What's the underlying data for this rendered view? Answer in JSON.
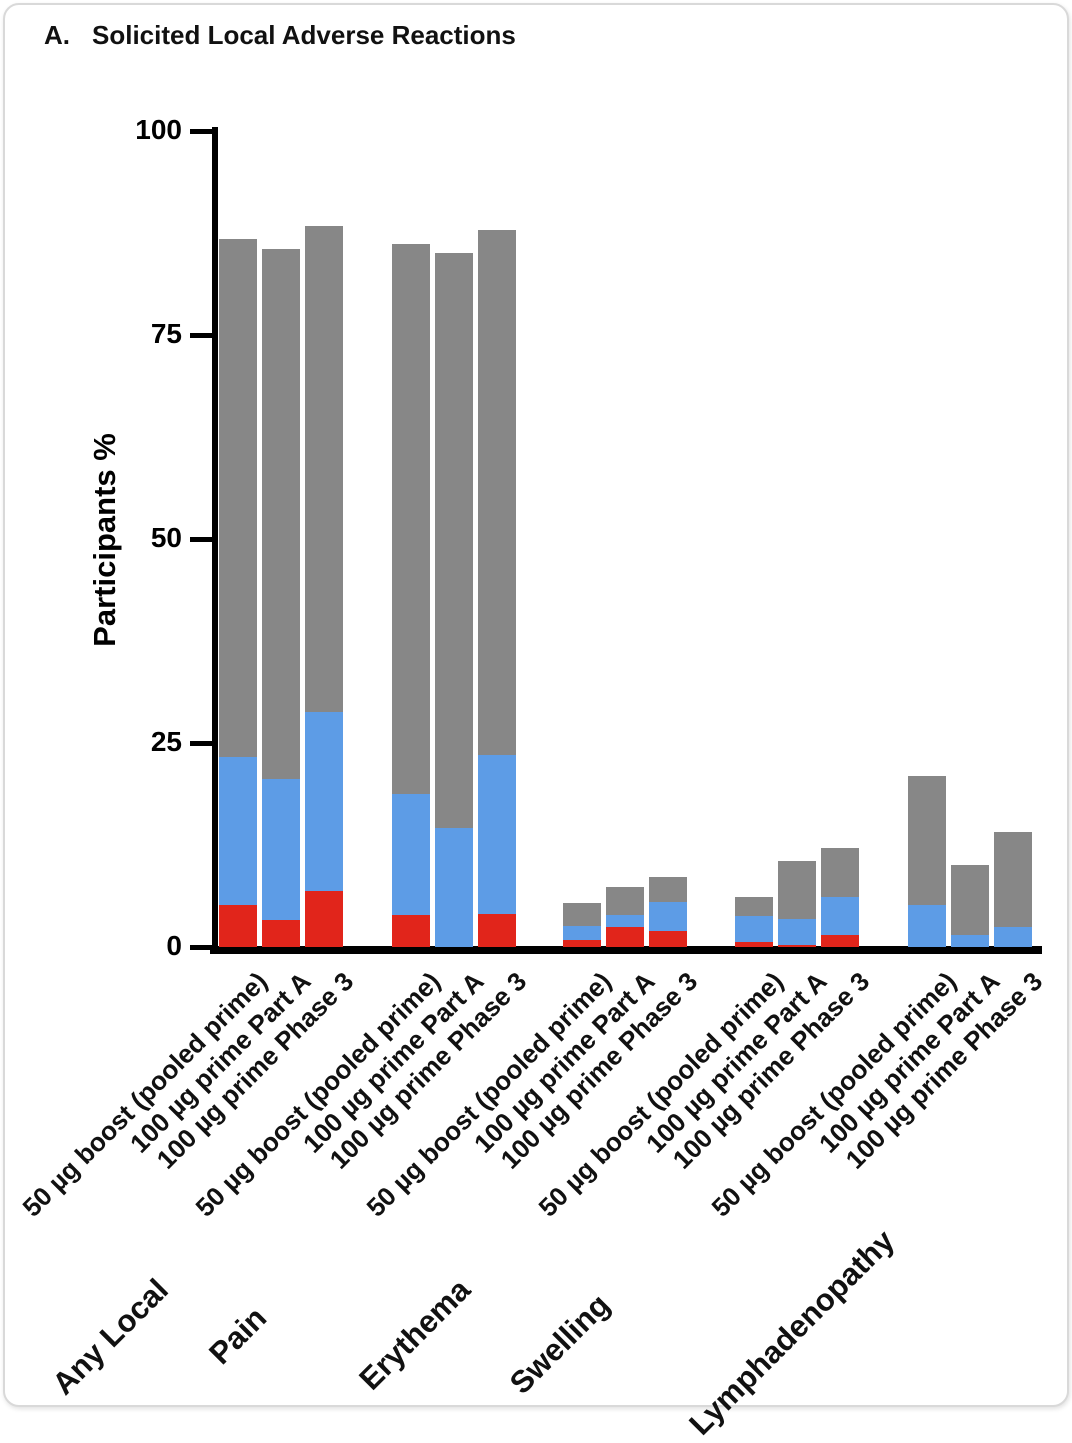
{
  "figure": {
    "panel_label": "A.",
    "title": "Solicited Local Adverse Reactions"
  },
  "chart_data": {
    "type": "bar",
    "subtype": "stacked-vertical",
    "title": "Solicited Local Adverse Reactions",
    "panel_label": "A.",
    "xlabel": "",
    "ylabel": "Participants %",
    "ylim": [
      0,
      100
    ],
    "yticks": [
      0,
      25,
      50,
      75,
      100
    ],
    "grid": false,
    "legend": "none visible",
    "stack_order_bottom_to_top": [
      "red",
      "blue",
      "gray"
    ],
    "colors": {
      "red": "#e1251b",
      "blue": "#5d9ce6",
      "gray": "#878787"
    },
    "bar_labels": [
      "50 µg boost (pooled prime)",
      "100 µg prime Part A",
      "100 µg prime Phase 3"
    ],
    "groups": [
      {
        "label": "Any Local",
        "bars": [
          {
            "label": "50 µg boost (pooled prime)",
            "red": 5.1,
            "blue": 18.2,
            "gray": 63.5,
            "total": 86.8
          },
          {
            "label": "100 µg prime Part A",
            "red": 3.3,
            "blue": 17.3,
            "gray": 64.9,
            "total": 85.5
          },
          {
            "label": "100 µg prime Phase 3",
            "red": 6.9,
            "blue": 21.9,
            "gray": 59.6,
            "total": 88.4
          }
        ]
      },
      {
        "label": "Pain",
        "bars": [
          {
            "label": "50 µg boost (pooled prime)",
            "red": 3.9,
            "blue": 14.9,
            "gray": 67.3,
            "total": 86.1
          },
          {
            "label": "100 µg prime Part A",
            "red": 0,
            "blue": 14.6,
            "gray": 70.4,
            "total": 85.0
          },
          {
            "label": "100 µg prime Phase 3",
            "red": 4.1,
            "blue": 19.4,
            "gray": 64.4,
            "total": 87.9
          }
        ]
      },
      {
        "label": "Erythema",
        "bars": [
          {
            "label": "50 µg boost (pooled prime)",
            "red": 0.8,
            "blue": 1.8,
            "gray": 2.8,
            "total": 5.4
          },
          {
            "label": "100 µg prime Part A",
            "red": 2.4,
            "blue": 1.5,
            "gray": 3.5,
            "total": 7.4
          },
          {
            "label": "100 µg prime Phase 3",
            "red": 2.0,
            "blue": 3.5,
            "gray": 3.1,
            "total": 8.6
          }
        ]
      },
      {
        "label": "Swelling",
        "bars": [
          {
            "label": "50 µg boost (pooled prime)",
            "red": 0.6,
            "blue": 3.2,
            "gray": 2.3,
            "total": 6.1
          },
          {
            "label": "100 µg prime Part A",
            "red": 0.3,
            "blue": 3.1,
            "gray": 7.1,
            "total": 10.5
          },
          {
            "label": "100 µg prime Phase 3",
            "red": 1.5,
            "blue": 4.6,
            "gray": 6.0,
            "total": 12.1
          }
        ]
      },
      {
        "label": "Lymphadenopathy",
        "bars": [
          {
            "label": "50 µg boost (pooled prime)",
            "red": 0,
            "blue": 5.1,
            "gray": 15.9,
            "total": 21.0
          },
          {
            "label": "100 µg prime Part A",
            "red": 0,
            "blue": 1.5,
            "gray": 8.5,
            "total": 10.0
          },
          {
            "label": "100 µg prime Phase 3",
            "red": 0,
            "blue": 2.5,
            "gray": 11.6,
            "total": 14.1
          }
        ]
      }
    ]
  }
}
